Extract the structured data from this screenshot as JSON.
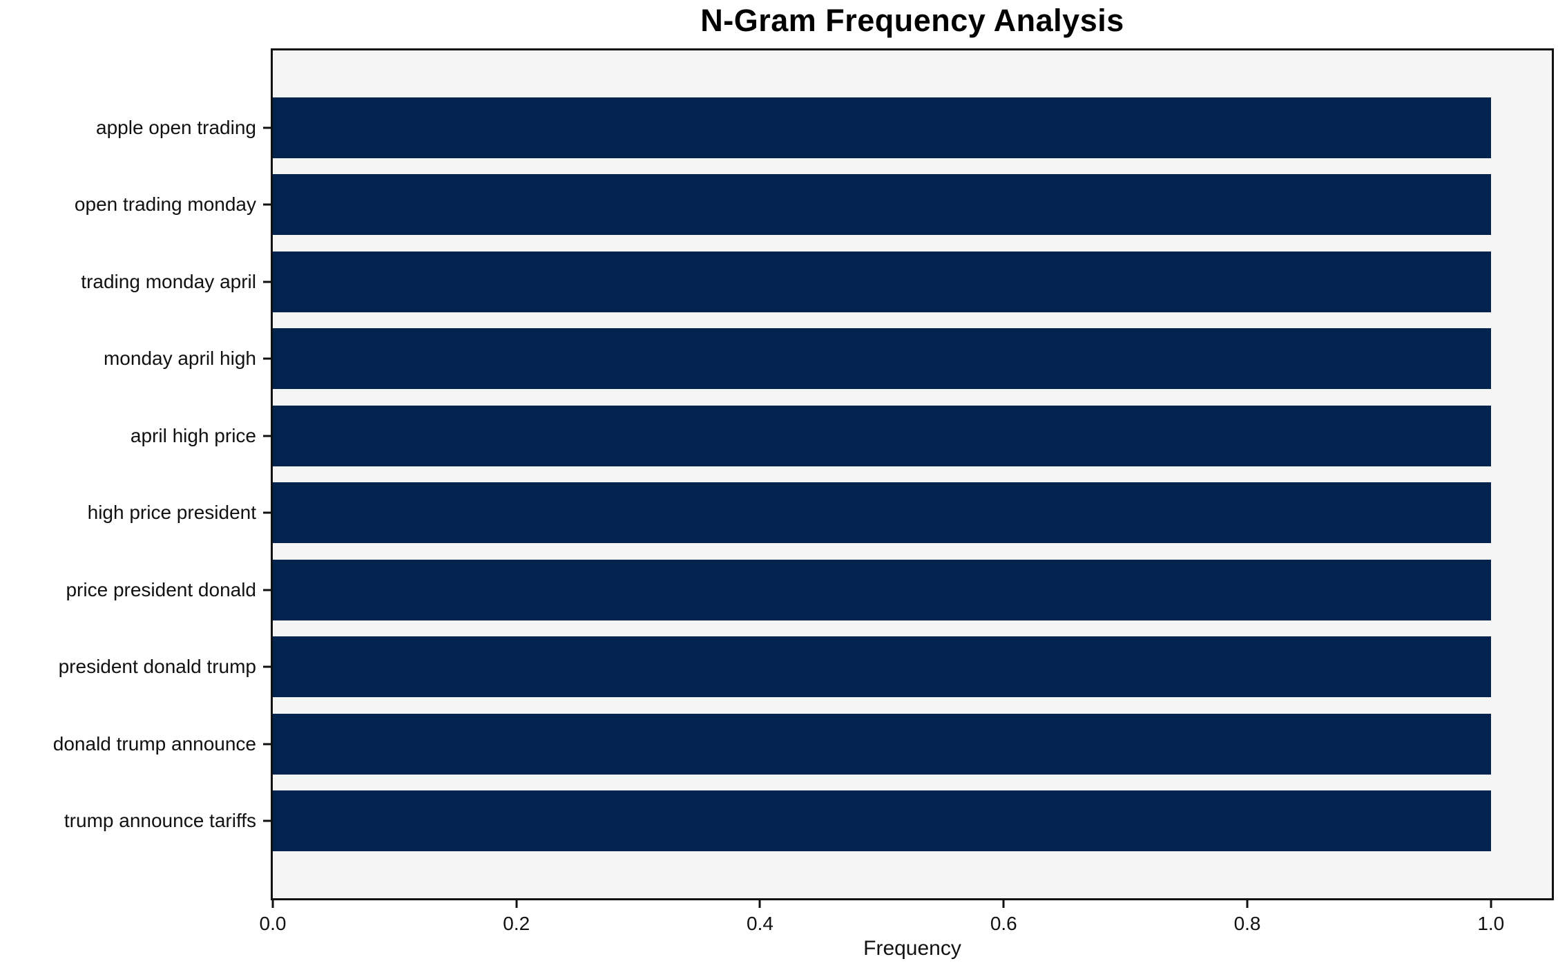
{
  "chart_data": {
    "type": "bar",
    "orientation": "horizontal",
    "title": "N-Gram Frequency Analysis",
    "xlabel": "Frequency",
    "ylabel": "",
    "categories": [
      "apple open trading",
      "open trading monday",
      "trading monday april",
      "monday april high",
      "april high price",
      "high price president",
      "price president donald",
      "president donald trump",
      "donald trump announce",
      "trump announce tariffs"
    ],
    "values": [
      1.0,
      1.0,
      1.0,
      1.0,
      1.0,
      1.0,
      1.0,
      1.0,
      1.0,
      1.0
    ],
    "xlim": [
      0,
      1.05
    ],
    "xticks": [
      0.0,
      0.2,
      0.4,
      0.6,
      0.8,
      1.0
    ],
    "grid": false,
    "legend": false,
    "bar_color": "#02234d",
    "plot_bg": "#f5f5f6",
    "figure_bg": "#ffffff",
    "spine_color": "#111111"
  }
}
